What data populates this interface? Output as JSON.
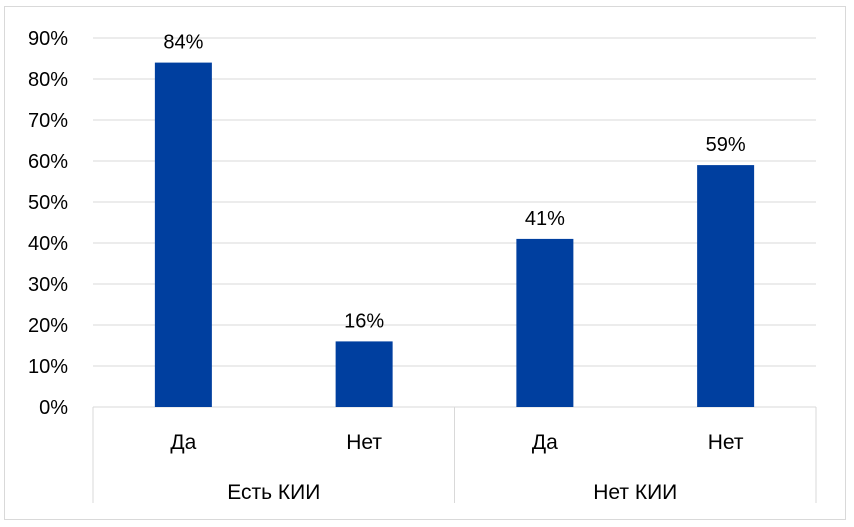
{
  "chart_data": {
    "type": "bar",
    "ylim": [
      0,
      90
    ],
    "ytick_step": 10,
    "yticks": [
      "0%",
      "10%",
      "20%",
      "30%",
      "40%",
      "50%",
      "60%",
      "70%",
      "80%",
      "90%"
    ],
    "grid": true,
    "bar_color": "#003f9f",
    "groups": [
      {
        "label": "Есть КИИ",
        "categories": [
          "Да",
          "Нет"
        ],
        "values": [
          84,
          16
        ],
        "data_labels": [
          "84%",
          "16%"
        ]
      },
      {
        "label": "Нет КИИ",
        "categories": [
          "Да",
          "Нет"
        ],
        "values": [
          41,
          59
        ],
        "data_labels": [
          "41%",
          "59%"
        ]
      }
    ]
  }
}
